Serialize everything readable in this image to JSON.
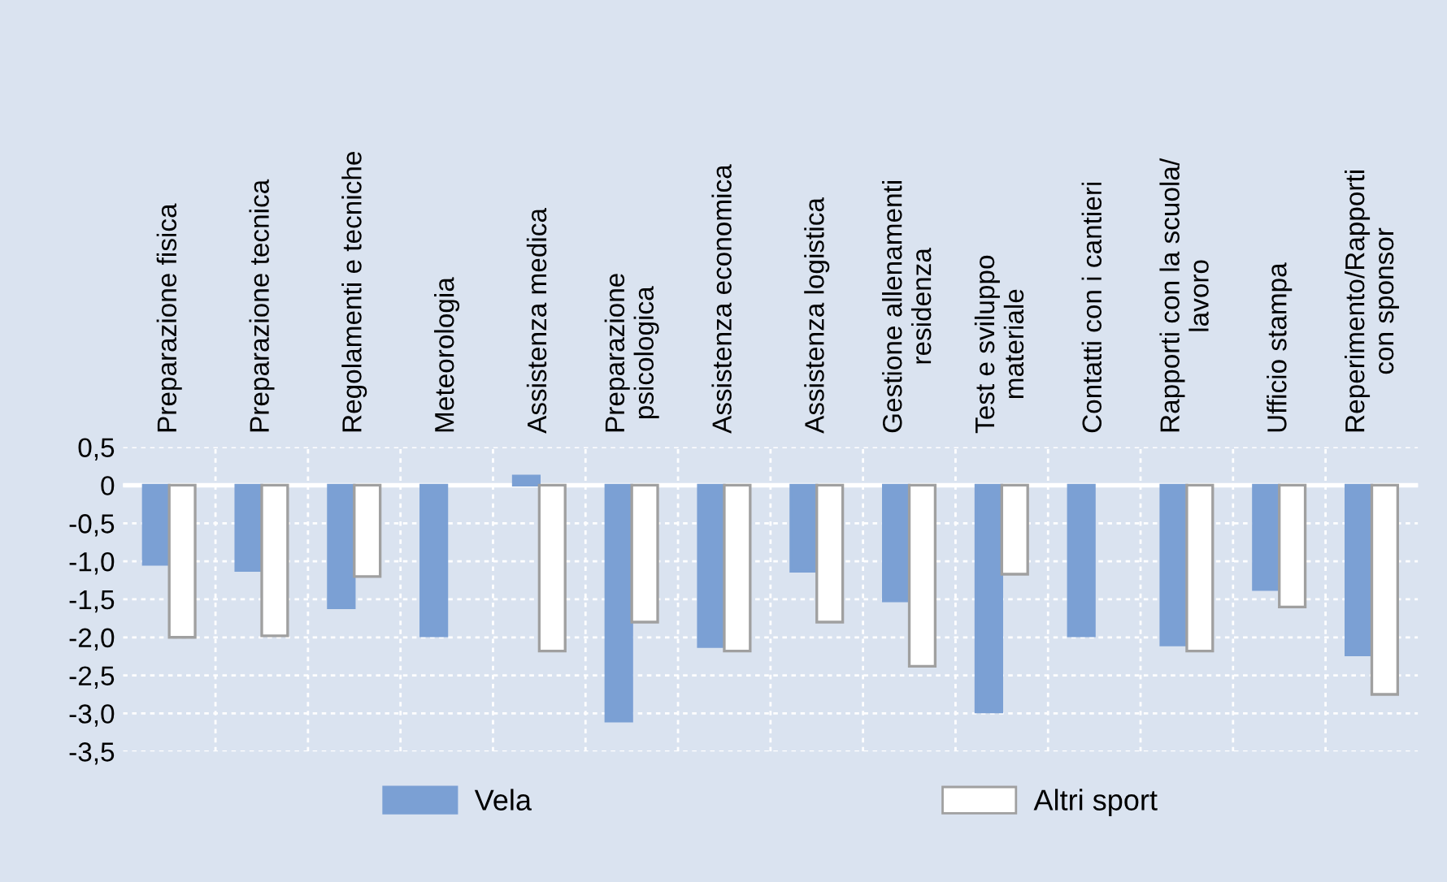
{
  "chart_data": {
    "type": "bar",
    "categories": [
      "Preparazione fisica",
      "Preparazione tecnica",
      "Regolamenti e tecniche",
      "Meteorologia",
      "Assistenza medica",
      "Preparazione\npsicologica",
      "Assistenza economica",
      "Assistenza logistica",
      "Gestione allenamenti\nresidenza",
      "Test e sviluppo\nmateriale",
      "Contatti con i cantieri",
      "Rapporti con la scuola/\nlavoro",
      "Ufficio stampa",
      "Reperimento/Rapporti\ncon sponsor"
    ],
    "series": [
      {
        "name": "Vela",
        "color": "#7ba0d4",
        "values": [
          -1.04,
          -1.12,
          -1.61,
          -1.98,
          0.12,
          -3.1,
          -2.12,
          -1.13,
          -1.52,
          -2.98,
          -1.98,
          -2.1,
          -1.37,
          -2.23
        ]
      },
      {
        "name": "Altri sport",
        "color": "#ffffff",
        "values": [
          -2.0,
          -1.98,
          -1.2,
          null,
          -2.18,
          -1.8,
          -2.18,
          -1.8,
          -2.38,
          -1.17,
          null,
          -2.18,
          -1.6,
          -2.75
        ]
      }
    ],
    "ylim": [
      -3.5,
      0.5
    ],
    "yticks": [
      {
        "value": 0.5,
        "label": "0,5"
      },
      0,
      {
        "value": -0.5,
        "label": "-0,5"
      },
      {
        "value": -1.0,
        "label": "-1,0"
      },
      {
        "value": -1.5,
        "label": "-1,5"
      },
      {
        "value": -2.0,
        "label": "-2,0"
      },
      {
        "value": -2.5,
        "label": "-2,5"
      },
      {
        "value": -3.0,
        "label": "-3,0"
      },
      {
        "value": -3.5,
        "label": "-3,5"
      }
    ],
    "grid": true,
    "legend": "bottom"
  }
}
